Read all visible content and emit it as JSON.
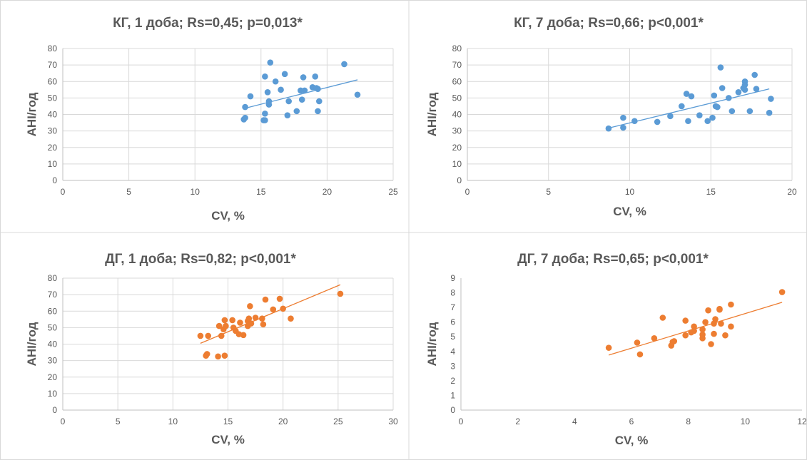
{
  "chart_data": [
    {
      "type": "scatter",
      "title": "КГ, 1 доба; Rs=0,45; p=0,013*",
      "xlabel": "CV, %",
      "ylabel": "АНІ/год",
      "xlim": [
        0,
        25
      ],
      "ylim": [
        0,
        80
      ],
      "xticks": [
        0,
        5,
        10,
        15,
        20,
        25
      ],
      "yticks": [
        0,
        10,
        20,
        30,
        40,
        50,
        60,
        70,
        80
      ],
      "grid": true,
      "color": "#5B9BD5",
      "trendline": {
        "x": [
          13.8,
          22.3
        ],
        "y": [
          43.8,
          61.0
        ]
      },
      "points": [
        {
          "x": 13.7,
          "y": 37
        },
        {
          "x": 13.8,
          "y": 38
        },
        {
          "x": 13.8,
          "y": 44.5
        },
        {
          "x": 14.2,
          "y": 51
        },
        {
          "x": 15.2,
          "y": 36.5
        },
        {
          "x": 15.3,
          "y": 36.5
        },
        {
          "x": 15.3,
          "y": 40.5
        },
        {
          "x": 15.3,
          "y": 63
        },
        {
          "x": 15.5,
          "y": 53.5
        },
        {
          "x": 15.6,
          "y": 46
        },
        {
          "x": 15.6,
          "y": 48
        },
        {
          "x": 15.7,
          "y": 71.5
        },
        {
          "x": 16.1,
          "y": 60
        },
        {
          "x": 16.5,
          "y": 55
        },
        {
          "x": 16.8,
          "y": 64.5
        },
        {
          "x": 17.0,
          "y": 39.5
        },
        {
          "x": 17.1,
          "y": 48
        },
        {
          "x": 17.7,
          "y": 42
        },
        {
          "x": 18.0,
          "y": 54.5
        },
        {
          "x": 18.1,
          "y": 49
        },
        {
          "x": 18.2,
          "y": 62.5
        },
        {
          "x": 18.3,
          "y": 54.5
        },
        {
          "x": 18.9,
          "y": 56.5
        },
        {
          "x": 19.1,
          "y": 63
        },
        {
          "x": 19.2,
          "y": 56
        },
        {
          "x": 19.3,
          "y": 42
        },
        {
          "x": 19.3,
          "y": 55.5
        },
        {
          "x": 19.4,
          "y": 48
        },
        {
          "x": 21.3,
          "y": 70.5
        },
        {
          "x": 22.3,
          "y": 52
        }
      ]
    },
    {
      "type": "scatter",
      "title": "КГ, 7 доба; Rs=0,66; p<0,001*",
      "xlabel": "CV, %",
      "ylabel": "АНІ/год",
      "xlim": [
        0,
        20
      ],
      "ylim": [
        0,
        80
      ],
      "xticks": [
        0,
        5,
        10,
        15,
        20
      ],
      "yticks": [
        0,
        10,
        20,
        30,
        40,
        50,
        60,
        70,
        80
      ],
      "grid": true,
      "color": "#5B9BD5",
      "trendline": {
        "x": [
          8.6,
          18.6
        ],
        "y": [
          31.5,
          55.5
        ]
      },
      "points": [
        {
          "x": 8.7,
          "y": 31.5
        },
        {
          "x": 9.6,
          "y": 32
        },
        {
          "x": 9.6,
          "y": 38
        },
        {
          "x": 10.3,
          "y": 36
        },
        {
          "x": 11.7,
          "y": 35.5
        },
        {
          "x": 12.5,
          "y": 39
        },
        {
          "x": 13.2,
          "y": 45
        },
        {
          "x": 13.5,
          "y": 52.5
        },
        {
          "x": 13.6,
          "y": 36
        },
        {
          "x": 13.8,
          "y": 51
        },
        {
          "x": 14.3,
          "y": 39.5
        },
        {
          "x": 14.8,
          "y": 36
        },
        {
          "x": 15.1,
          "y": 38
        },
        {
          "x": 15.2,
          "y": 51.5
        },
        {
          "x": 15.3,
          "y": 45
        },
        {
          "x": 15.4,
          "y": 44.5
        },
        {
          "x": 15.6,
          "y": 68.5
        },
        {
          "x": 15.7,
          "y": 56
        },
        {
          "x": 16.1,
          "y": 50
        },
        {
          "x": 16.3,
          "y": 42
        },
        {
          "x": 16.7,
          "y": 53.5
        },
        {
          "x": 17.0,
          "y": 56
        },
        {
          "x": 17.1,
          "y": 58
        },
        {
          "x": 17.1,
          "y": 60
        },
        {
          "x": 17.1,
          "y": 55
        },
        {
          "x": 17.4,
          "y": 42
        },
        {
          "x": 17.7,
          "y": 64
        },
        {
          "x": 17.8,
          "y": 55.5
        },
        {
          "x": 18.6,
          "y": 41
        },
        {
          "x": 18.7,
          "y": 49.5
        }
      ]
    },
    {
      "type": "scatter",
      "title": "ДГ, 1 доба; Rs=0,82; p<0,001*",
      "xlabel": "CV, %",
      "ylabel": "АНІ/год",
      "xlim": [
        0,
        30
      ],
      "ylim": [
        0,
        80
      ],
      "xticks": [
        0,
        5,
        10,
        15,
        20,
        25,
        30
      ],
      "yticks": [
        0,
        10,
        20,
        30,
        40,
        50,
        60,
        70,
        80
      ],
      "grid": true,
      "color": "#ED7D31",
      "trendline": {
        "x": [
          12.5,
          25.2
        ],
        "y": [
          40.5,
          76
        ]
      },
      "points": [
        {
          "x": 12.5,
          "y": 45
        },
        {
          "x": 13.0,
          "y": 33
        },
        {
          "x": 13.1,
          "y": 34
        },
        {
          "x": 13.2,
          "y": 45
        },
        {
          "x": 14.1,
          "y": 32.5
        },
        {
          "x": 14.2,
          "y": 51
        },
        {
          "x": 14.4,
          "y": 45
        },
        {
          "x": 14.6,
          "y": 49
        },
        {
          "x": 14.7,
          "y": 54.5
        },
        {
          "x": 14.7,
          "y": 33
        },
        {
          "x": 14.8,
          "y": 51
        },
        {
          "x": 15.4,
          "y": 54.5
        },
        {
          "x": 15.5,
          "y": 50
        },
        {
          "x": 15.7,
          "y": 48
        },
        {
          "x": 16.0,
          "y": 46
        },
        {
          "x": 16.1,
          "y": 53
        },
        {
          "x": 16.4,
          "y": 45.5
        },
        {
          "x": 16.8,
          "y": 51
        },
        {
          "x": 16.8,
          "y": 54
        },
        {
          "x": 16.9,
          "y": 55.5
        },
        {
          "x": 17.0,
          "y": 63
        },
        {
          "x": 17.1,
          "y": 52.5
        },
        {
          "x": 17.5,
          "y": 56
        },
        {
          "x": 18.1,
          "y": 55.5
        },
        {
          "x": 18.2,
          "y": 52
        },
        {
          "x": 18.4,
          "y": 67
        },
        {
          "x": 19.1,
          "y": 61
        },
        {
          "x": 19.7,
          "y": 67.5
        },
        {
          "x": 20.0,
          "y": 61.5
        },
        {
          "x": 20.7,
          "y": 55.5
        },
        {
          "x": 25.2,
          "y": 70.5
        }
      ]
    },
    {
      "type": "scatter",
      "title": "ДГ, 7 доба; Rs=0,65; p<0,001*",
      "xlabel": "CV, %",
      "ylabel": "АНІ/год",
      "xlim": [
        0,
        12
      ],
      "ylim": [
        0,
        9
      ],
      "xticks": [
        0,
        2,
        4,
        6,
        8,
        10,
        12
      ],
      "yticks": [
        0,
        1,
        2,
        3,
        4,
        5,
        6,
        7,
        8,
        9
      ],
      "grid": false,
      "color": "#ED7D31",
      "trendline": {
        "x": [
          5.2,
          11.3
        ],
        "y": [
          3.75,
          7.35
        ]
      },
      "points": [
        {
          "x": 5.2,
          "y": 4.25
        },
        {
          "x": 6.2,
          "y": 4.6
        },
        {
          "x": 6.3,
          "y": 3.8
        },
        {
          "x": 6.8,
          "y": 4.9
        },
        {
          "x": 7.1,
          "y": 6.3
        },
        {
          "x": 7.4,
          "y": 4.4
        },
        {
          "x": 7.45,
          "y": 4.65
        },
        {
          "x": 7.5,
          "y": 4.7
        },
        {
          "x": 7.9,
          "y": 5.1
        },
        {
          "x": 7.9,
          "y": 6.1
        },
        {
          "x": 8.1,
          "y": 5.3
        },
        {
          "x": 8.2,
          "y": 5.7
        },
        {
          "x": 8.2,
          "y": 5.4
        },
        {
          "x": 8.5,
          "y": 4.9
        },
        {
          "x": 8.5,
          "y": 5.15
        },
        {
          "x": 8.5,
          "y": 5.5
        },
        {
          "x": 8.6,
          "y": 6.0
        },
        {
          "x": 8.7,
          "y": 6.8
        },
        {
          "x": 8.8,
          "y": 4.5
        },
        {
          "x": 8.9,
          "y": 5.2
        },
        {
          "x": 8.9,
          "y": 5.9
        },
        {
          "x": 8.95,
          "y": 6.2
        },
        {
          "x": 9.1,
          "y": 6.9
        },
        {
          "x": 9.1,
          "y": 6.85
        },
        {
          "x": 9.15,
          "y": 5.9
        },
        {
          "x": 9.3,
          "y": 5.1
        },
        {
          "x": 9.5,
          "y": 5.7
        },
        {
          "x": 9.5,
          "y": 7.2
        },
        {
          "x": 11.3,
          "y": 8.05
        }
      ]
    }
  ]
}
